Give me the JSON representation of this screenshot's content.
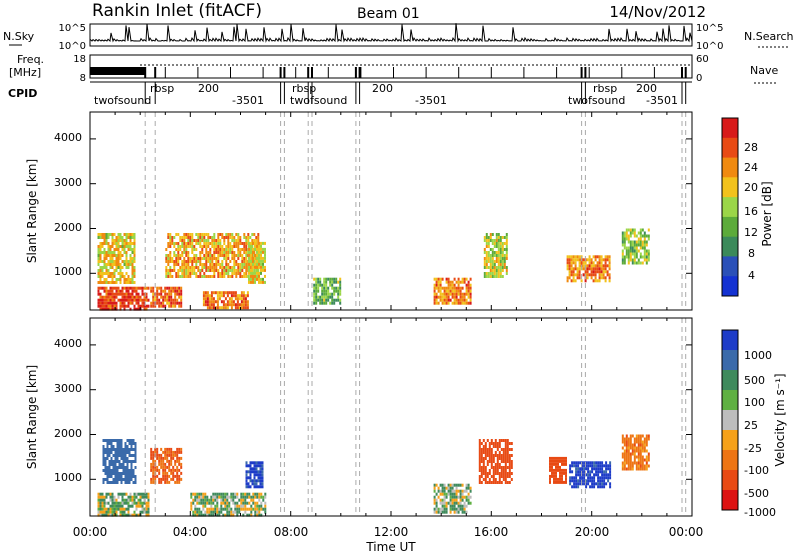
{
  "header": {
    "station": "Rankin Inlet (fitACF)",
    "beam": "Beam 01",
    "date": "14/Nov/2012"
  },
  "noise_panel": {
    "left_label": "N.Sky",
    "left_ticks": [
      "10^5",
      "10^0"
    ],
    "right_label": "N.Search",
    "right_ticks": [
      "10^5",
      "10^0"
    ]
  },
  "freq_panel": {
    "left_label_1": "Freq.",
    "left_label_2": "[MHz]",
    "left_ticks": [
      "18",
      "8"
    ],
    "right_label": "Nave",
    "right_ticks": [
      "60",
      "0"
    ]
  },
  "cpid": {
    "label": "CPID",
    "names": [
      "twofsound",
      "rbsp",
      "200",
      "-3501"
    ]
  },
  "x_axis": {
    "label": "Time UT",
    "ticks": [
      "00:00",
      "04:00",
      "08:00",
      "12:00",
      "16:00",
      "20:00",
      "00:00"
    ],
    "range_hours": [
      0,
      24
    ]
  },
  "power_panel": {
    "ylabel": "Slant Range [km]",
    "yticks": [
      "1000",
      "2000",
      "3000",
      "4000"
    ],
    "colorbar_label": "Power [dB]",
    "colorbar_ticks": [
      "4",
      "8",
      "12",
      "16",
      "20",
      "24",
      "28"
    ],
    "colorbar_colors": [
      "#1432d2",
      "#2a50b8",
      "#3b8a5a",
      "#5cab3a",
      "#9bd648",
      "#f2c21c",
      "#f08a10",
      "#e84a14",
      "#d81a1a"
    ]
  },
  "velocity_panel": {
    "ylabel": "Slant Range [km]",
    "yticks": [
      "1000",
      "2000",
      "3000",
      "4000"
    ],
    "colorbar_label": "Velocity [m s⁻¹]",
    "colorbar_ticks": [
      "1000",
      "500",
      "100",
      "25",
      "-25",
      "-100",
      "-500",
      "-1000"
    ],
    "colorbar_colors": [
      "#1e3cc8",
      "#3a6aaa",
      "#3f8a5c",
      "#5fb042",
      "#bdbdbd",
      "#f5a11a",
      "#ee7514",
      "#e84a14",
      "#dd1212"
    ]
  },
  "chart_data": {
    "type": "heatmap",
    "x_unit": "hours UT",
    "xlim": [
      0,
      24
    ],
    "ylim_km": [
      180,
      4600
    ],
    "mode_change_hours": [
      2.2,
      2.6,
      7.6,
      7.75,
      8.7,
      8.85,
      10.6,
      10.75,
      19.6,
      19.75,
      23.6,
      23.75
    ],
    "power_regions": [
      {
        "t0": 0.3,
        "t1": 2.3,
        "r0": 200,
        "r1": 700,
        "power_db": 28
      },
      {
        "t0": 0.3,
        "t1": 1.8,
        "r0": 800,
        "r1": 1900,
        "power_db": 20
      },
      {
        "t0": 2.4,
        "t1": 3.6,
        "r0": 250,
        "r1": 700,
        "power_db": 26
      },
      {
        "t0": 3.0,
        "t1": 6.7,
        "r0": 900,
        "r1": 1900,
        "power_db": 22
      },
      {
        "t0": 4.5,
        "t1": 6.3,
        "r0": 200,
        "r1": 600,
        "power_db": 24
      },
      {
        "t0": 6.3,
        "t1": 7.0,
        "r0": 800,
        "r1": 1700,
        "power_db": 20
      },
      {
        "t0": 8.9,
        "t1": 10.0,
        "r0": 300,
        "r1": 900,
        "power_db": 14
      },
      {
        "t0": 13.7,
        "t1": 15.2,
        "r0": 300,
        "r1": 900,
        "power_db": 24
      },
      {
        "t0": 15.7,
        "t1": 16.6,
        "r0": 900,
        "r1": 1900,
        "power_db": 18
      },
      {
        "t0": 19.0,
        "t1": 20.7,
        "r0": 800,
        "r1": 1400,
        "power_db": 24
      },
      {
        "t0": 21.2,
        "t1": 22.3,
        "r0": 1200,
        "r1": 2000,
        "power_db": 16
      }
    ],
    "velocity_regions": [
      {
        "t0": 0.3,
        "t1": 2.3,
        "r0": 200,
        "r1": 700,
        "velocity": 50
      },
      {
        "t0": 0.5,
        "t1": 1.8,
        "r0": 900,
        "r1": 1900,
        "velocity": 500
      },
      {
        "t0": 2.4,
        "t1": 3.6,
        "r0": 900,
        "r1": 1700,
        "velocity": -300
      },
      {
        "t0": 4.0,
        "t1": 7.0,
        "r0": 200,
        "r1": 700,
        "velocity": 50
      },
      {
        "t0": 6.2,
        "t1": 6.9,
        "r0": 800,
        "r1": 1400,
        "velocity": 800
      },
      {
        "t0": 13.7,
        "t1": 15.2,
        "r0": 250,
        "r1": 900,
        "velocity": 50
      },
      {
        "t0": 15.5,
        "t1": 16.8,
        "r0": 900,
        "r1": 1900,
        "velocity": -500
      },
      {
        "t0": 18.3,
        "t1": 19.0,
        "r0": 900,
        "r1": 1500,
        "velocity": -500
      },
      {
        "t0": 19.1,
        "t1": 20.7,
        "r0": 800,
        "r1": 1400,
        "velocity": 800
      },
      {
        "t0": 21.2,
        "t1": 22.3,
        "r0": 1200,
        "r1": 2000,
        "velocity": -200
      }
    ]
  }
}
